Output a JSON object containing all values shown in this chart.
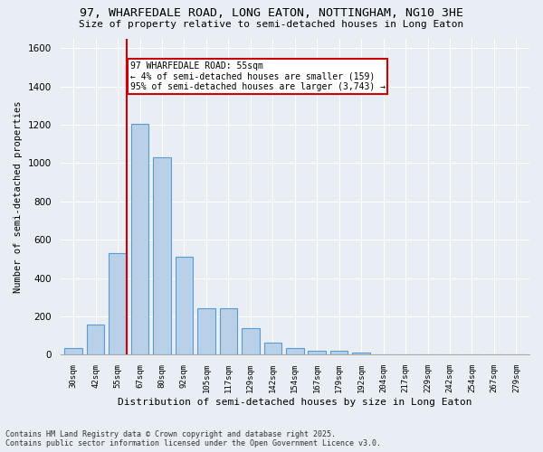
{
  "title1": "97, WHARFEDALE ROAD, LONG EATON, NOTTINGHAM, NG10 3HE",
  "title2": "Size of property relative to semi-detached houses in Long Eaton",
  "xlabel": "Distribution of semi-detached houses by size in Long Eaton",
  "ylabel": "Number of semi-detached properties",
  "bins": [
    "30sqm",
    "42sqm",
    "55sqm",
    "67sqm",
    "80sqm",
    "92sqm",
    "105sqm",
    "117sqm",
    "129sqm",
    "142sqm",
    "154sqm",
    "167sqm",
    "179sqm",
    "192sqm",
    "204sqm",
    "217sqm",
    "229sqm",
    "242sqm",
    "254sqm",
    "267sqm",
    "279sqm"
  ],
  "values": [
    35,
    160,
    530,
    1205,
    1030,
    510,
    245,
    245,
    140,
    65,
    35,
    22,
    20,
    12,
    0,
    0,
    0,
    0,
    0,
    0,
    0
  ],
  "property_bin_index": 2,
  "property_label": "97 WHARFEDALE ROAD: 55sqm",
  "annotation_line1": "← 4% of semi-detached houses are smaller (159)",
  "annotation_line2": "95% of semi-detached houses are larger (3,743) →",
  "bar_color": "#b8d0e8",
  "bar_edge_color": "#5b9bd5",
  "vline_color": "#cc0000",
  "annotation_box_color": "#cc0000",
  "background_color": "#e8eef4",
  "grid_color": "#ffffff",
  "ylim": [
    0,
    1650
  ],
  "footer1": "Contains HM Land Registry data © Crown copyright and database right 2025.",
  "footer2": "Contains public sector information licensed under the Open Government Licence v3.0."
}
